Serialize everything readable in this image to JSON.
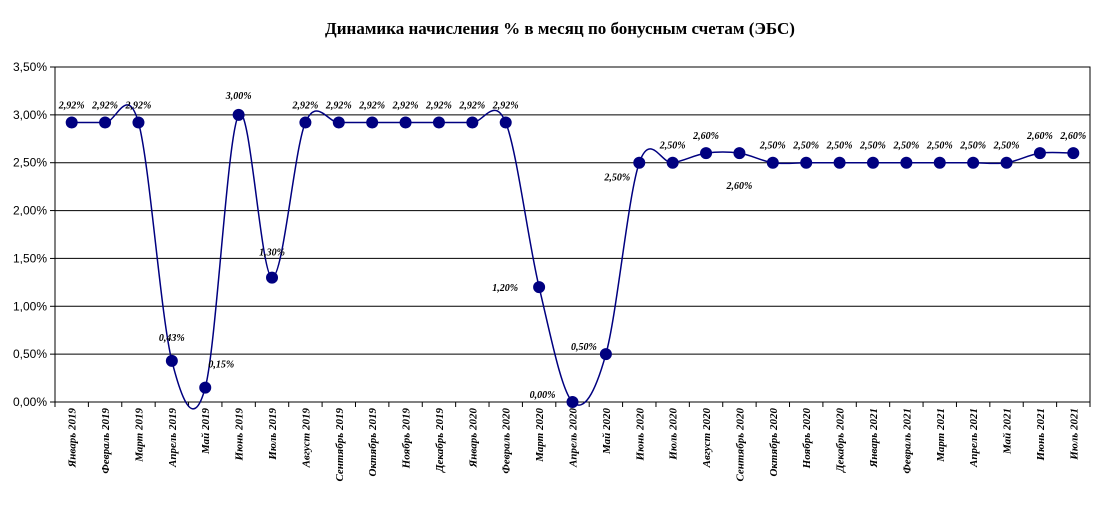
{
  "chart_data": {
    "type": "line",
    "title": "Динамика начисления % в месяц по бонусным счетам (ЭБС)",
    "xlabel": "",
    "ylabel": "",
    "ylim": [
      0,
      3.5
    ],
    "y_ticks": [
      "0,00%",
      "0,50%",
      "1,00%",
      "1,50%",
      "2,00%",
      "2,50%",
      "3,00%",
      "3,50%"
    ],
    "grid": true,
    "smooth": true,
    "line_color": "#000080",
    "marker_color": "#000080",
    "categories": [
      "Январь 2019",
      "Февраль 2019",
      "Март 2019",
      "Апрель 2019",
      "Май 2019",
      "Июнь 2019",
      "Июль 2019",
      "Август 2019",
      "Сентябрь 2019",
      "Октябрь 2019",
      "Ноябрь 2019",
      "Декабрь 2019",
      "Январь 2020",
      "Февраль 2020",
      "Март 2020",
      "Апрель 2020",
      "Май 2020",
      "Июнь 2020",
      "Июль 2020",
      "Август 2020",
      "Сентябрь 2020",
      "Октябрь 2020",
      "Ноябрь 2020",
      "Декабрь 2020",
      "Январь 2021",
      "Февраль 2021",
      "Март 2021",
      "Апрель 2021",
      "Май 2021",
      "Июнь 2021",
      "Июль 2021"
    ],
    "values": [
      2.92,
      2.92,
      2.92,
      0.43,
      0.15,
      3.0,
      1.3,
      2.92,
      2.92,
      2.92,
      2.92,
      2.92,
      2.92,
      2.92,
      1.2,
      0.0,
      0.5,
      2.5,
      2.5,
      2.6,
      2.6,
      2.5,
      2.5,
      2.5,
      2.5,
      2.5,
      2.5,
      2.5,
      2.5,
      2.6,
      2.6
    ],
    "data_labels": [
      "2,92%",
      "2,92%",
      "2,92%",
      "0,43%",
      "0,15%",
      "3,00%",
      "1,30%",
      "2,92%",
      "2,92%",
      "2,92%",
      "2,92%",
      "2,92%",
      "2,92%",
      "2,92%",
      "1,20%",
      "0,00%",
      "0,50%",
      "2,50%",
      "2,50%",
      "2,60%",
      "2,60%",
      "2,50%",
      "2,50%",
      "2,50%",
      "2,50%",
      "2,50%",
      "2,50%",
      "2,50%",
      "2,50%",
      "2,60%",
      "2,60%"
    ]
  }
}
